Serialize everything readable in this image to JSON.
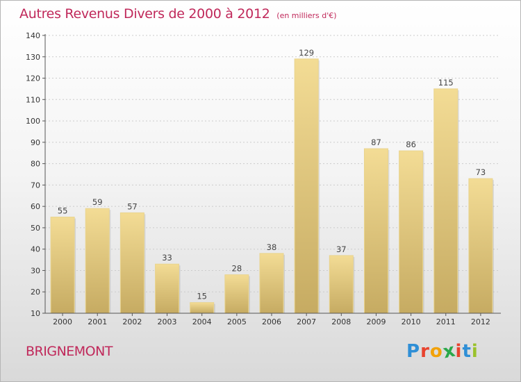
{
  "header": {
    "title": "Autres Revenus Divers de 2000 à 2012",
    "subtitle": "(en milliers d'€)"
  },
  "footer": {
    "commune": "BRIGNEMONT",
    "logo_letters": [
      "P",
      "r",
      "o",
      "x",
      "i",
      "t",
      "i"
    ],
    "logo_colors": [
      "#2f8fd6",
      "#e8432e",
      "#f2a20a",
      "#2aa84a",
      "#e8432e",
      "#2f8fd6",
      "#9ac22c"
    ]
  },
  "colors": {
    "bar_top": "#f3dc95",
    "bar_bottom": "#c6ab62",
    "axis": "#555555",
    "grid": "#cccccc"
  },
  "chart_data": {
    "type": "bar",
    "title": "Autres Revenus Divers de 2000 à 2012",
    "subtitle": "(en milliers d'€)",
    "categories": [
      "2000",
      "2001",
      "2002",
      "2003",
      "2004",
      "2005",
      "2006",
      "2007",
      "2008",
      "2009",
      "2010",
      "2011",
      "2012"
    ],
    "values": [
      55,
      59,
      57,
      33,
      15,
      28,
      38,
      129,
      37,
      87,
      86,
      115,
      73
    ],
    "ylim": [
      10,
      140
    ],
    "yticks": [
      10,
      20,
      30,
      40,
      50,
      60,
      70,
      80,
      90,
      100,
      110,
      120,
      130,
      140
    ],
    "grid": true,
    "xlabel": "",
    "ylabel": ""
  }
}
